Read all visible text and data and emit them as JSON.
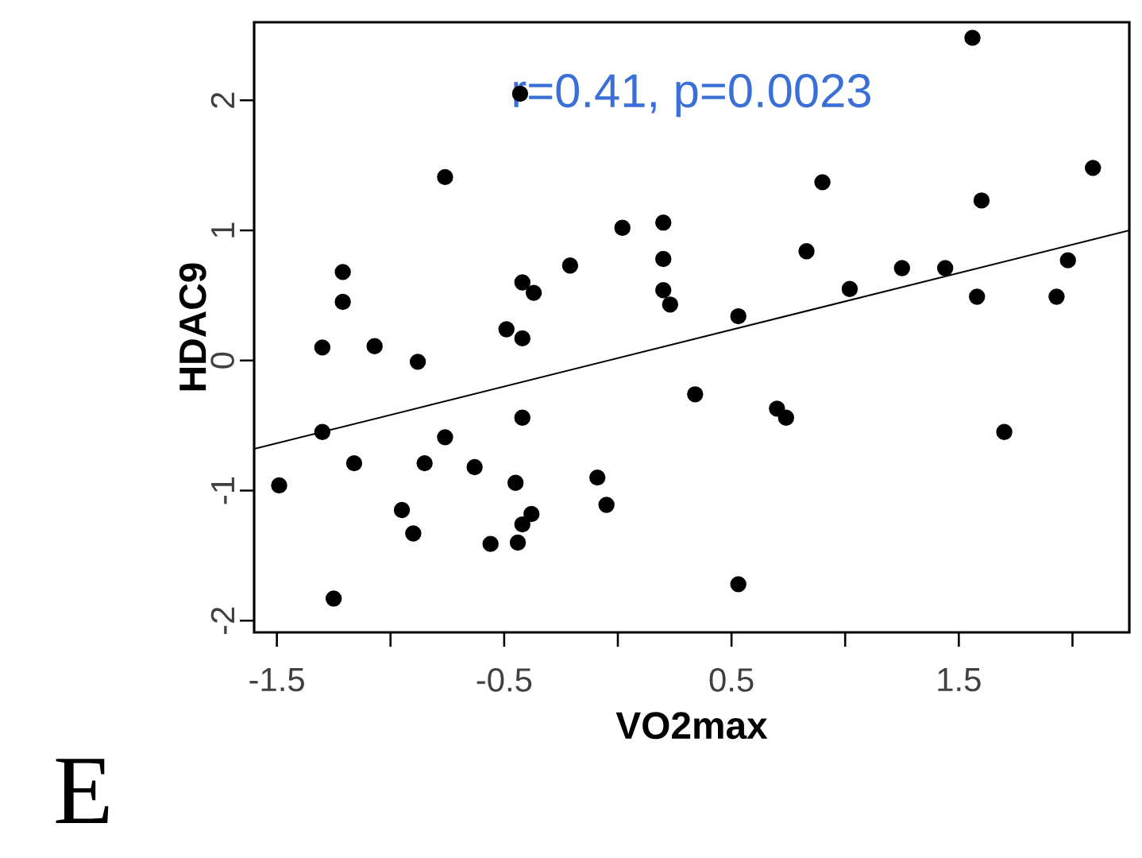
{
  "chart_data": {
    "type": "scatter",
    "xlabel": "VO2max",
    "ylabel": "HDAC9",
    "annotations": [
      "r=0.41, p=0.0023",
      "E"
    ],
    "xlim": [
      -1.6,
      2.25
    ],
    "ylim": [
      -2.09,
      2.6
    ],
    "xticks": [
      -1.5,
      {
        "value": -1,
        "label": null
      },
      -0.5,
      {
        "value": 0,
        "label": null
      },
      0.5,
      {
        "value": 1,
        "label": null
      },
      1.5,
      {
        "value": 2,
        "label": null
      }
    ],
    "yticks": [
      -2,
      -1,
      0,
      1,
      2
    ],
    "grid": false,
    "series": [
      {
        "color": "#000000",
        "marker": "circle",
        "x": [
          -1.49,
          -1.3,
          -1.3,
          -1.21,
          -1.21,
          -1.25,
          -1.16,
          -1.07,
          -0.88,
          -0.95,
          -0.9,
          -0.85,
          -0.76,
          -0.76,
          -0.63,
          -0.56,
          -0.49,
          -0.42,
          -0.45,
          -0.42,
          -0.38,
          -0.42,
          -0.44,
          -0.43,
          -0.42,
          -0.37,
          -0.21,
          -0.09,
          -0.05,
          0.02,
          0.2,
          0.2,
          0.2,
          0.23,
          0.34,
          0.7,
          0.74,
          0.53,
          0.53,
          0.83,
          0.9,
          1.02,
          1.25,
          1.44,
          1.56,
          1.6,
          1.58,
          1.7,
          1.93,
          1.98,
          2.09
        ],
        "values": [
          -0.96,
          -0.55,
          0.1,
          0.68,
          0.45,
          -1.83,
          -0.79,
          0.11,
          -0.01,
          -1.15,
          -1.33,
          -0.79,
          -0.59,
          1.41,
          -0.82,
          -1.41,
          0.24,
          0.17,
          -0.94,
          -0.44,
          -1.18,
          -1.26,
          -1.4,
          2.05,
          0.6,
          0.52,
          0.73,
          -0.9,
          -1.11,
          1.02,
          1.06,
          0.78,
          0.54,
          0.43,
          -0.26,
          -0.37,
          -0.44,
          -1.72,
          0.34,
          0.84,
          1.37,
          0.55,
          0.71,
          0.71,
          2.48,
          1.23,
          0.49,
          -0.55,
          0.49,
          0.77,
          1.48
        ]
      },
      {
        "type": "line",
        "color": "#000000",
        "marker": "none",
        "x": [
          -1.6,
          2.25
        ],
        "values": [
          -0.68,
          1.0
        ]
      }
    ]
  }
}
